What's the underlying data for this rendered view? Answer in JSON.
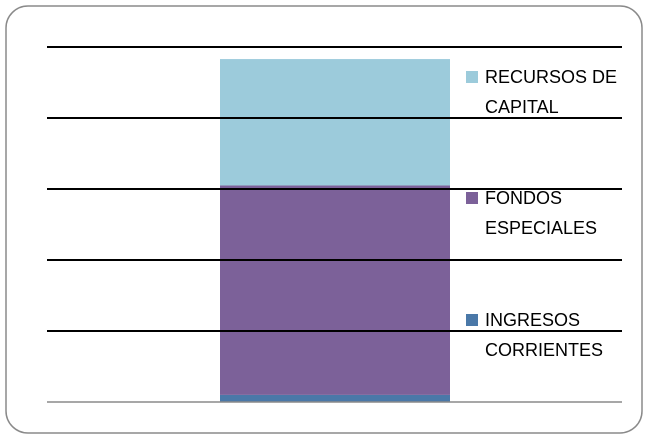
{
  "chart_data": {
    "type": "stacked_bar",
    "categories": [
      null
    ],
    "series": [
      {
        "name": "INGRESOS CORRIENTES",
        "color": "#4a78a8",
        "values": [
          0.1
        ]
      },
      {
        "name": "FONDOS ESPECIALES",
        "color": "#7c6199",
        "values": [
          2.95
        ]
      },
      {
        "name": "RECURSOS DE CAPITAL",
        "color": "#9ccbdb",
        "values": [
          1.78
        ]
      }
    ],
    "ylim": [
      0,
      5
    ],
    "yticks": [
      0,
      1,
      2,
      3,
      4,
      5
    ],
    "grid": true,
    "legend": "right"
  }
}
